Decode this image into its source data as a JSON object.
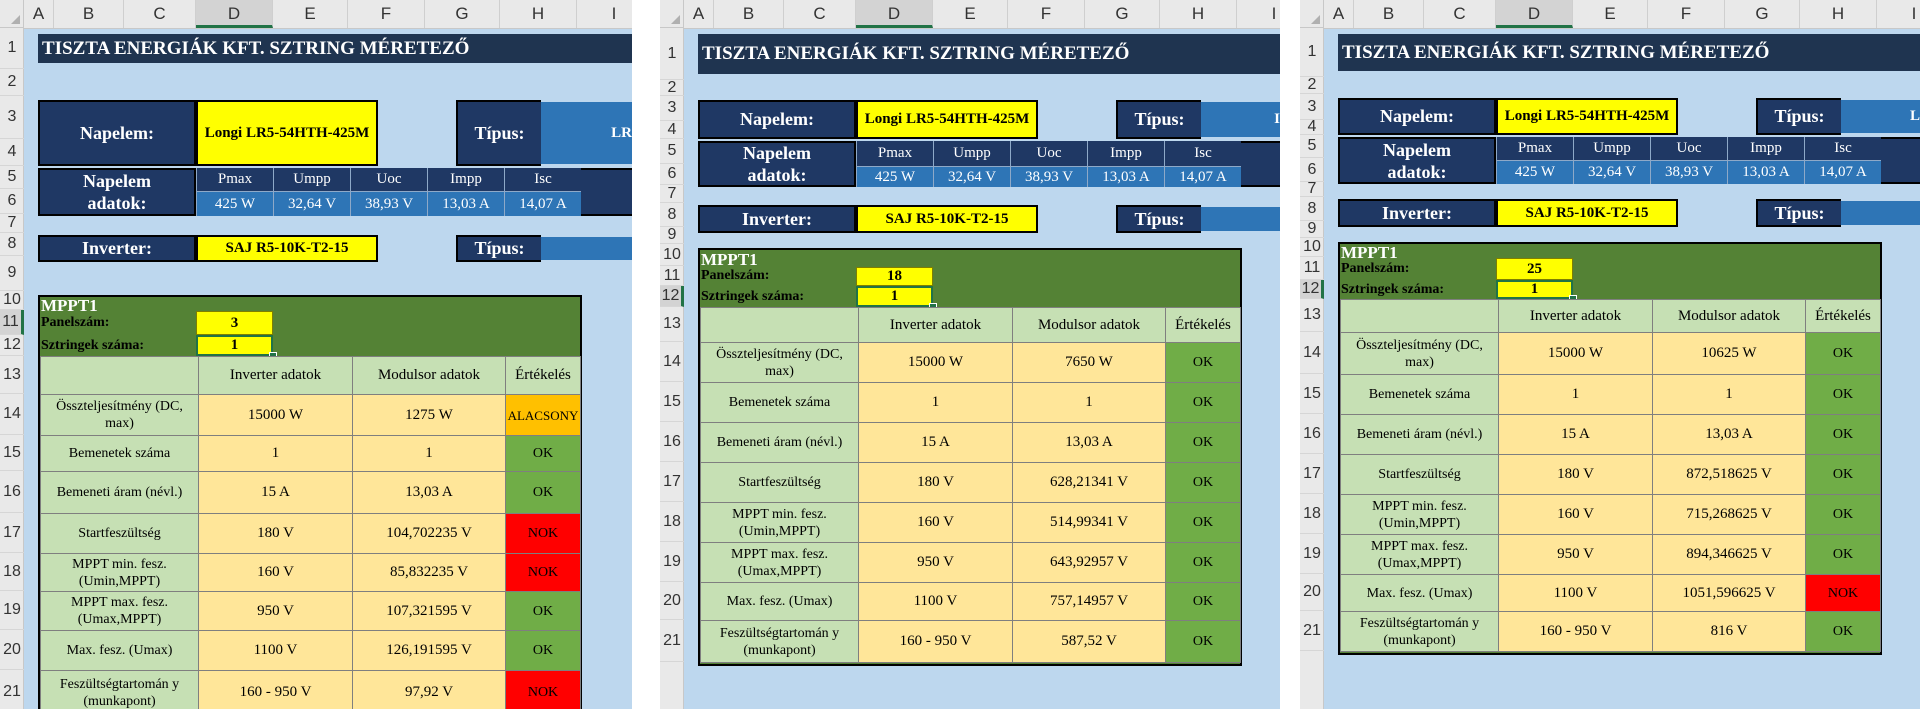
{
  "columns": [
    "A",
    "B",
    "C",
    "D",
    "E",
    "F",
    "G",
    "H",
    "I"
  ],
  "rows": [
    "1",
    "2",
    "3",
    "4",
    "5",
    "6",
    "7",
    "8",
    "9",
    "10",
    "11",
    "12",
    "13",
    "14",
    "15",
    "16",
    "17",
    "18",
    "19",
    "20",
    "21"
  ],
  "title": "TISZTA ENERGIÁK KFT. SZTRING MÉRETEZŐ",
  "napelem_label": "Napelem:",
  "napelem_value": "Longi LR5-54HTH-425M",
  "tipus_label": "Típus:",
  "tipus_partial": [
    "LR",
    "I",
    "L"
  ],
  "napelem_adatok_label": [
    "Napelem",
    "adatok:"
  ],
  "spec_headers": [
    "Pmax",
    "Umpp",
    "Uoc",
    "Impp",
    "Isc"
  ],
  "spec_values": [
    "425 W",
    "32,64 V",
    "38,93 V",
    "13,03 A",
    "14,07 A"
  ],
  "inverter_label": "Inverter:",
  "inverter_value": "SAJ R5-10K-T2-15",
  "mppt_title": "MPPT1",
  "panelszam_label": "Panelszám:",
  "sztringek_label": "Sztringek száma:",
  "table_headers": [
    "Inverter adatok",
    "Modulsor adatok",
    "Értékelés"
  ],
  "row_labels": [
    "Összteljesítmény (DC, max)",
    "Bemenetek száma",
    "Bemeneti áram (névl.)",
    "Startfeszültség",
    "MPPT min. fesz. (Umin,MPPT)",
    "MPPT max. fesz. (Umax,MPPT)",
    "Max. fesz. (Umax)",
    "Feszültségtartomán y (munkapont)"
  ],
  "inverter_values": [
    "15000  W",
    "1",
    "15  A",
    "180  V",
    "160  V",
    "950  V",
    "1100  V",
    "160  -  950  V"
  ],
  "panels": [
    {
      "panelszam": "3",
      "sztringek": "1",
      "modulsor": [
        "1275  W",
        "1",
        "13,03  A",
        "104,702235  V",
        "85,832235  V",
        "107,321595  V",
        "126,191595  V",
        "97,92  V"
      ],
      "ertekeles": [
        "ALACSONY",
        "OK",
        "OK",
        "NOK",
        "NOK",
        "OK",
        "OK",
        "NOK"
      ]
    },
    {
      "panelszam": "18",
      "sztringek": "1",
      "modulsor": [
        "7650  W",
        "1",
        "13,03  A",
        "628,21341  V",
        "514,99341  V",
        "643,92957  V",
        "757,14957  V",
        "587,52  V"
      ],
      "ertekeles": [
        "OK",
        "OK",
        "OK",
        "OK",
        "OK",
        "OK",
        "OK",
        "OK"
      ]
    },
    {
      "panelszam": "25",
      "sztringek": "1",
      "modulsor": [
        "10625  W",
        "1",
        "13,03  A",
        "872,518625  V",
        "715,268625  V",
        "894,346625  V",
        "1051,596625  V",
        "816  V"
      ],
      "ertekeles": [
        "OK",
        "OK",
        "OK",
        "OK",
        "OK",
        "OK",
        "NOK",
        "OK"
      ]
    }
  ]
}
